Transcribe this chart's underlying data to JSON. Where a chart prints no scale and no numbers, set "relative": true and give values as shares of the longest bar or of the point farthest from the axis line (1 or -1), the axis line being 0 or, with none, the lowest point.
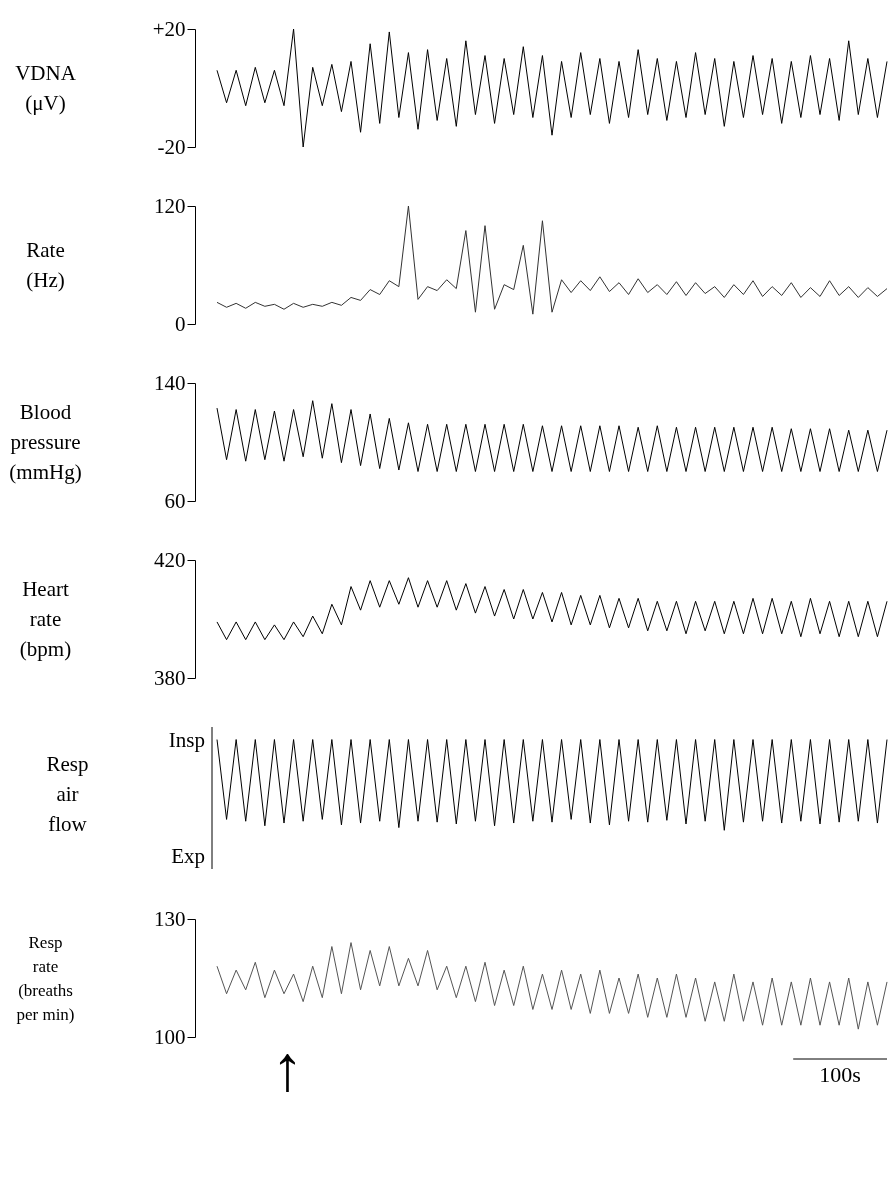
{
  "chart_data": [
    {
      "type": "line",
      "ylabel": "VDNA\n(μV)",
      "tick_labels": "y",
      "ylim": [
        -20,
        20
      ],
      "yticks": [
        {
          "value": 20,
          "label": "+20"
        },
        -20
      ],
      "categories": [
        null,
        null,
        null,
        null,
        null,
        null,
        null,
        null,
        null,
        null,
        null,
        null,
        null,
        null,
        null,
        null,
        null,
        null,
        null,
        null,
        null,
        null,
        null,
        null,
        null,
        null,
        null,
        null,
        null,
        null,
        null,
        null,
        null,
        null,
        null,
        null,
        null,
        null,
        null,
        null,
        null,
        null,
        null,
        null,
        null,
        null,
        null,
        null,
        null,
        null,
        null,
        null,
        null,
        null,
        null,
        null,
        null,
        null,
        null,
        null,
        null,
        null,
        null,
        null,
        null,
        null,
        null,
        null,
        null,
        null,
        null
      ],
      "series": [
        {
          "color": "#000000",
          "values": [
            6,
            -5,
            6,
            -6,
            7,
            -5,
            6,
            -6,
            20,
            -20,
            7,
            -6,
            8,
            -8,
            9,
            -15,
            15,
            -12,
            19,
            -10,
            12,
            -14,
            13,
            -11,
            10,
            -13,
            16,
            -9,
            11,
            -12,
            10,
            -9,
            14,
            -10,
            11,
            -16,
            9,
            -10,
            12,
            -9,
            10,
            -12,
            9,
            -10,
            13,
            -9,
            10,
            -11,
            9,
            -10,
            12,
            -9,
            10,
            -13,
            9,
            -10,
            11,
            -9,
            10,
            -12,
            9,
            -10,
            11,
            -9,
            10,
            -11,
            16,
            -9,
            10,
            -10,
            9
          ]
        }
      ]
    },
    {
      "type": "line",
      "ylabel": "Rate\n(Hz)",
      "tick_labels": "y",
      "ylim": [
        0,
        120
      ],
      "yticks": [
        120,
        0
      ],
      "categories": [
        null,
        null,
        null,
        null,
        null,
        null,
        null,
        null,
        null,
        null,
        null,
        null,
        null,
        null,
        null,
        null,
        null,
        null,
        null,
        null,
        null,
        null,
        null,
        null,
        null,
        null,
        null,
        null,
        null,
        null,
        null,
        null,
        null,
        null,
        null,
        null,
        null,
        null,
        null,
        null,
        null,
        null,
        null,
        null,
        null,
        null,
        null,
        null,
        null,
        null,
        null,
        null,
        null,
        null,
        null,
        null,
        null,
        null,
        null,
        null,
        null,
        null,
        null,
        null,
        null,
        null,
        null,
        null,
        null,
        null,
        null
      ],
      "series": [
        {
          "color": "#333333",
          "values": [
            22,
            17,
            21,
            16,
            22,
            18,
            20,
            15,
            21,
            17,
            20,
            18,
            22,
            19,
            27,
            24,
            35,
            30,
            44,
            38,
            120,
            25,
            38,
            34,
            45,
            36,
            95,
            12,
            100,
            15,
            40,
            35,
            80,
            10,
            105,
            12,
            45,
            32,
            44,
            34,
            48,
            33,
            42,
            30,
            46,
            32,
            40,
            30,
            43,
            29,
            42,
            31,
            38,
            27,
            40,
            30,
            44,
            28,
            38,
            29,
            42,
            27,
            37,
            28,
            44,
            29,
            38,
            27,
            37,
            28,
            36
          ]
        }
      ]
    },
    {
      "type": "line",
      "ylabel": "Blood\npressure\n(mmHg)",
      "tick_labels": "y",
      "ylim": [
        60,
        140
      ],
      "yticks": [
        140,
        60
      ],
      "categories": [
        null,
        null,
        null,
        null,
        null,
        null,
        null,
        null,
        null,
        null,
        null,
        null,
        null,
        null,
        null,
        null,
        null,
        null,
        null,
        null,
        null,
        null,
        null,
        null,
        null,
        null,
        null,
        null,
        null,
        null,
        null,
        null,
        null,
        null,
        null,
        null,
        null,
        null,
        null,
        null,
        null,
        null,
        null,
        null,
        null,
        null,
        null,
        null,
        null,
        null,
        null,
        null,
        null,
        null,
        null,
        null,
        null,
        null,
        null,
        null,
        null,
        null,
        null,
        null,
        null,
        null,
        null,
        null,
        null,
        null,
        null
      ],
      "series": [
        {
          "color": "#000000",
          "values": [
            123,
            88,
            122,
            87,
            122,
            88,
            121,
            87,
            122,
            90,
            128,
            89,
            126,
            86,
            122,
            84,
            119,
            82,
            116,
            81,
            113,
            80,
            112,
            80,
            112,
            80,
            112,
            80,
            112,
            80,
            112,
            80,
            112,
            80,
            111,
            80,
            111,
            80,
            111,
            80,
            111,
            80,
            111,
            80,
            110,
            80,
            111,
            80,
            110,
            80,
            110,
            80,
            110,
            80,
            110,
            80,
            110,
            80,
            110,
            80,
            109,
            80,
            109,
            80,
            109,
            80,
            108,
            80,
            108,
            80,
            108
          ]
        }
      ]
    },
    {
      "type": "line",
      "ylabel": "Heart\nrate\n(bpm)",
      "tick_labels": "y",
      "ylim": [
        380,
        420
      ],
      "yticks": [
        420,
        380
      ],
      "categories": [
        null,
        null,
        null,
        null,
        null,
        null,
        null,
        null,
        null,
        null,
        null,
        null,
        null,
        null,
        null,
        null,
        null,
        null,
        null,
        null,
        null,
        null,
        null,
        null,
        null,
        null,
        null,
        null,
        null,
        null,
        null,
        null,
        null,
        null,
        null,
        null,
        null,
        null,
        null,
        null,
        null,
        null,
        null,
        null,
        null,
        null,
        null,
        null,
        null,
        null,
        null,
        null,
        null,
        null,
        null,
        null,
        null,
        null,
        null,
        null,
        null,
        null,
        null,
        null,
        null,
        null,
        null,
        null,
        null,
        null,
        null
      ],
      "series": [
        {
          "color": "#000000",
          "values": [
            399,
            393,
            399,
            393,
            399,
            393,
            398,
            393,
            399,
            394,
            401,
            395,
            405,
            398,
            411,
            403,
            413,
            404,
            413,
            405,
            414,
            404,
            413,
            404,
            413,
            403,
            412,
            402,
            411,
            401,
            410,
            400,
            410,
            400,
            409,
            399,
            409,
            398,
            408,
            398,
            408,
            397,
            407,
            397,
            407,
            396,
            406,
            396,
            406,
            395,
            406,
            396,
            406,
            395,
            406,
            395,
            407,
            395,
            407,
            395,
            406,
            394,
            407,
            395,
            406,
            394,
            406,
            394,
            406,
            394,
            406
          ]
        }
      ]
    },
    {
      "type": "line",
      "relative": true,
      "ylabel": "Resp\nair\nflow",
      "annotations": [
        "Insp",
        "Exp"
      ],
      "tick_labels": "y",
      "categories": [
        null,
        null,
        null,
        null,
        null,
        null,
        null,
        null,
        null,
        null,
        null,
        null,
        null,
        null,
        null,
        null,
        null,
        null,
        null,
        null,
        null,
        null,
        null,
        null,
        null,
        null,
        null,
        null,
        null,
        null,
        null,
        null,
        null,
        null,
        null,
        null,
        null,
        null,
        null,
        null,
        null,
        null,
        null,
        null,
        null,
        null,
        null,
        null,
        null,
        null,
        null,
        null,
        null,
        null,
        null,
        null,
        null,
        null,
        null,
        null,
        null,
        null,
        null,
        null,
        null,
        null,
        null,
        null,
        null,
        null,
        null
      ],
      "series": [
        {
          "color": "#000000",
          "values": [
            1,
            0.12,
            1,
            0.1,
            1,
            0.05,
            1,
            0.08,
            1,
            0.1,
            1,
            0.12,
            1,
            0.06,
            1,
            0.08,
            1,
            0.1,
            1,
            0.03,
            1,
            0.1,
            1,
            0.09,
            1,
            0.07,
            1,
            0.1,
            1,
            0.05,
            1,
            0.08,
            1,
            0.1,
            1,
            0.09,
            1,
            0.12,
            1,
            0.08,
            1,
            0.06,
            1,
            0.1,
            1,
            0.09,
            1,
            0.11,
            1,
            0.07,
            1,
            0.1,
            1,
            0,
            1,
            0.09,
            1,
            0.1,
            1,
            0.08,
            1,
            0.1,
            1,
            0.07,
            1,
            0.09,
            1,
            0.1,
            1,
            0.08,
            1
          ]
        }
      ]
    },
    {
      "type": "line",
      "ylabel": "Resp\nrate\n(breaths\nper min)",
      "tick_labels": "y",
      "ylim": [
        100,
        130
      ],
      "yticks": [
        130,
        100
      ],
      "annotations": [
        "↑",
        "100s"
      ],
      "categories": [
        null,
        null,
        null,
        null,
        null,
        null,
        null,
        null,
        null,
        null,
        null,
        null,
        null,
        null,
        null,
        null,
        null,
        null,
        null,
        null,
        null,
        null,
        null,
        null,
        null,
        null,
        null,
        null,
        null,
        null,
        null,
        null,
        null,
        null,
        null,
        null,
        null,
        null,
        null,
        null,
        null,
        null,
        null,
        null,
        null,
        null,
        null,
        null,
        null,
        null,
        null,
        null,
        null,
        null,
        null,
        null,
        null,
        null,
        null,
        null,
        null,
        null,
        null,
        null,
        null,
        null,
        null,
        null,
        null,
        null,
        null
      ],
      "series": [
        {
          "color": "#555555",
          "values": [
            118,
            111,
            117,
            112,
            119,
            110,
            117,
            111,
            116,
            109,
            118,
            110,
            123,
            111,
            124,
            112,
            122,
            113,
            123,
            113,
            120,
            113,
            122,
            112,
            118,
            110,
            118,
            109,
            119,
            108,
            117,
            108,
            118,
            107,
            116,
            107,
            117,
            107,
            116,
            106,
            117,
            106,
            115,
            106,
            116,
            105,
            115,
            105,
            116,
            105,
            115,
            104,
            114,
            104,
            116,
            104,
            114,
            103,
            115,
            103,
            114,
            103,
            115,
            103,
            114,
            103,
            115,
            102,
            114,
            103,
            114
          ]
        }
      ]
    }
  ]
}
